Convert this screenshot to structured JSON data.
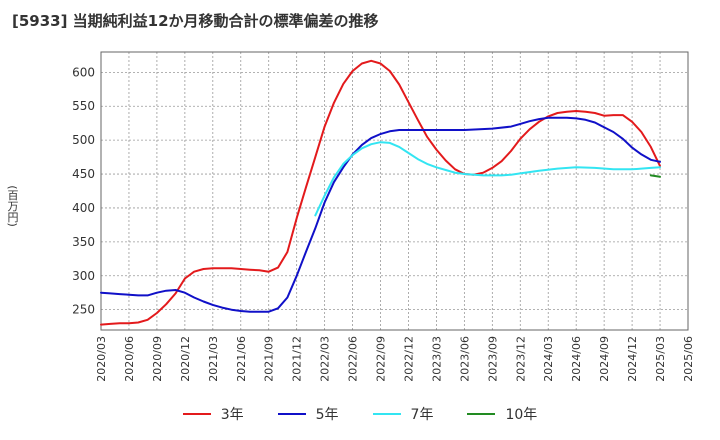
{
  "chart_data": {
    "type": "line",
    "title": "[5933]  当期純利益12か月移動合計の標準偏差の推移",
    "xlabel": "",
    "ylabel": "(百万円)",
    "ylim": [
      220,
      630
    ],
    "xlim": [
      2020.25,
      2025.5
    ],
    "yticks": [
      250,
      300,
      350,
      400,
      450,
      500,
      550,
      600
    ],
    "xticks": [
      {
        "t": 2020.25,
        "label": "2020/03"
      },
      {
        "t": 2020.5,
        "label": "2020/06"
      },
      {
        "t": 2020.75,
        "label": "2020/09"
      },
      {
        "t": 2021.0,
        "label": "2020/12"
      },
      {
        "t": 2021.25,
        "label": "2021/03"
      },
      {
        "t": 2021.5,
        "label": "2021/06"
      },
      {
        "t": 2021.75,
        "label": "2021/09"
      },
      {
        "t": 2022.0,
        "label": "2021/12"
      },
      {
        "t": 2022.25,
        "label": "2022/03"
      },
      {
        "t": 2022.5,
        "label": "2022/06"
      },
      {
        "t": 2022.75,
        "label": "2022/09"
      },
      {
        "t": 2023.0,
        "label": "2022/12"
      },
      {
        "t": 2023.25,
        "label": "2023/03"
      },
      {
        "t": 2023.5,
        "label": "2023/06"
      },
      {
        "t": 2023.75,
        "label": "2023/09"
      },
      {
        "t": 2024.0,
        "label": "2023/12"
      },
      {
        "t": 2024.25,
        "label": "2024/03"
      },
      {
        "t": 2024.5,
        "label": "2024/06"
      },
      {
        "t": 2024.75,
        "label": "2024/09"
      },
      {
        "t": 2025.0,
        "label": "2024/12"
      },
      {
        "t": 2025.25,
        "label": "2025/03"
      },
      {
        "t": 2025.5,
        "label": "2025/06"
      }
    ],
    "grid": true,
    "legend_position": "bottom",
    "series": [
      {
        "name": "3年",
        "color": "#e31a1c",
        "points": [
          [
            2020.25,
            228
          ],
          [
            2020.333,
            229
          ],
          [
            2020.417,
            230
          ],
          [
            2020.5,
            230
          ],
          [
            2020.583,
            231
          ],
          [
            2020.667,
            235
          ],
          [
            2020.75,
            245
          ],
          [
            2020.833,
            258
          ],
          [
            2020.917,
            274
          ],
          [
            2021.0,
            296
          ],
          [
            2021.083,
            306
          ],
          [
            2021.167,
            310
          ],
          [
            2021.25,
            311
          ],
          [
            2021.333,
            311
          ],
          [
            2021.417,
            311
          ],
          [
            2021.5,
            310
          ],
          [
            2021.583,
            309
          ],
          [
            2021.667,
            308
          ],
          [
            2021.75,
            306
          ],
          [
            2021.833,
            312
          ],
          [
            2021.917,
            335
          ],
          [
            2022.0,
            385
          ],
          [
            2022.083,
            430
          ],
          [
            2022.167,
            475
          ],
          [
            2022.25,
            520
          ],
          [
            2022.333,
            555
          ],
          [
            2022.417,
            583
          ],
          [
            2022.5,
            602
          ],
          [
            2022.583,
            613
          ],
          [
            2022.667,
            617
          ],
          [
            2022.75,
            613
          ],
          [
            2022.833,
            602
          ],
          [
            2022.917,
            582
          ],
          [
            2023.0,
            556
          ],
          [
            2023.083,
            530
          ],
          [
            2023.167,
            505
          ],
          [
            2023.25,
            486
          ],
          [
            2023.333,
            470
          ],
          [
            2023.417,
            457
          ],
          [
            2023.5,
            450
          ],
          [
            2023.583,
            449
          ],
          [
            2023.667,
            452
          ],
          [
            2023.75,
            459
          ],
          [
            2023.833,
            469
          ],
          [
            2023.917,
            484
          ],
          [
            2024.0,
            502
          ],
          [
            2024.083,
            516
          ],
          [
            2024.167,
            527
          ],
          [
            2024.25,
            535
          ],
          [
            2024.333,
            540
          ],
          [
            2024.417,
            542
          ],
          [
            2024.5,
            543
          ],
          [
            2024.583,
            542
          ],
          [
            2024.667,
            540
          ],
          [
            2024.75,
            536
          ],
          [
            2024.833,
            537
          ],
          [
            2024.917,
            537
          ],
          [
            2025.0,
            527
          ],
          [
            2025.083,
            512
          ],
          [
            2025.167,
            490
          ],
          [
            2025.25,
            462
          ]
        ]
      },
      {
        "name": "5年",
        "color": "#1010c8",
        "points": [
          [
            2020.25,
            275
          ],
          [
            2020.333,
            274
          ],
          [
            2020.417,
            273
          ],
          [
            2020.5,
            272
          ],
          [
            2020.583,
            271
          ],
          [
            2020.667,
            271
          ],
          [
            2020.75,
            275
          ],
          [
            2020.833,
            278
          ],
          [
            2020.917,
            279
          ],
          [
            2021.0,
            275
          ],
          [
            2021.083,
            268
          ],
          [
            2021.167,
            262
          ],
          [
            2021.25,
            257
          ],
          [
            2021.333,
            253
          ],
          [
            2021.417,
            250
          ],
          [
            2021.5,
            248
          ],
          [
            2021.583,
            247
          ],
          [
            2021.667,
            247
          ],
          [
            2021.75,
            247
          ],
          [
            2021.833,
            252
          ],
          [
            2021.917,
            268
          ],
          [
            2022.0,
            300
          ],
          [
            2022.083,
            335
          ],
          [
            2022.167,
            370
          ],
          [
            2022.25,
            408
          ],
          [
            2022.333,
            438
          ],
          [
            2022.417,
            460
          ],
          [
            2022.5,
            479
          ],
          [
            2022.583,
            493
          ],
          [
            2022.667,
            503
          ],
          [
            2022.75,
            509
          ],
          [
            2022.833,
            513
          ],
          [
            2022.917,
            515
          ],
          [
            2023.0,
            515
          ],
          [
            2023.25,
            515
          ],
          [
            2023.5,
            515
          ],
          [
            2023.75,
            517
          ],
          [
            2023.917,
            520
          ],
          [
            2024.0,
            524
          ],
          [
            2024.083,
            528
          ],
          [
            2024.167,
            531
          ],
          [
            2024.25,
            533
          ],
          [
            2024.333,
            533
          ],
          [
            2024.417,
            533
          ],
          [
            2024.5,
            532
          ],
          [
            2024.583,
            530
          ],
          [
            2024.667,
            526
          ],
          [
            2024.75,
            519
          ],
          [
            2024.833,
            512
          ],
          [
            2024.917,
            502
          ],
          [
            2025.0,
            489
          ],
          [
            2025.083,
            479
          ],
          [
            2025.167,
            471
          ],
          [
            2025.25,
            468
          ]
        ]
      },
      {
        "name": "7年",
        "color": "#33e5f2",
        "points": [
          [
            2022.167,
            389
          ],
          [
            2022.25,
            418
          ],
          [
            2022.333,
            445
          ],
          [
            2022.417,
            465
          ],
          [
            2022.5,
            478
          ],
          [
            2022.583,
            488
          ],
          [
            2022.667,
            494
          ],
          [
            2022.75,
            497
          ],
          [
            2022.833,
            496
          ],
          [
            2022.917,
            490
          ],
          [
            2023.0,
            481
          ],
          [
            2023.083,
            472
          ],
          [
            2023.167,
            465
          ],
          [
            2023.25,
            460
          ],
          [
            2023.333,
            456
          ],
          [
            2023.417,
            452
          ],
          [
            2023.5,
            450
          ],
          [
            2023.667,
            448
          ],
          [
            2023.833,
            448
          ],
          [
            2023.917,
            449
          ],
          [
            2024.0,
            451
          ],
          [
            2024.167,
            455
          ],
          [
            2024.333,
            458
          ],
          [
            2024.5,
            460
          ],
          [
            2024.667,
            459
          ],
          [
            2024.833,
            457
          ],
          [
            2025.0,
            457
          ],
          [
            2025.083,
            458
          ],
          [
            2025.167,
            459
          ],
          [
            2025.25,
            460
          ]
        ]
      },
      {
        "name": "10年",
        "color": "#228b22",
        "points": [
          [
            2025.167,
            448
          ],
          [
            2025.25,
            446
          ]
        ]
      }
    ]
  }
}
